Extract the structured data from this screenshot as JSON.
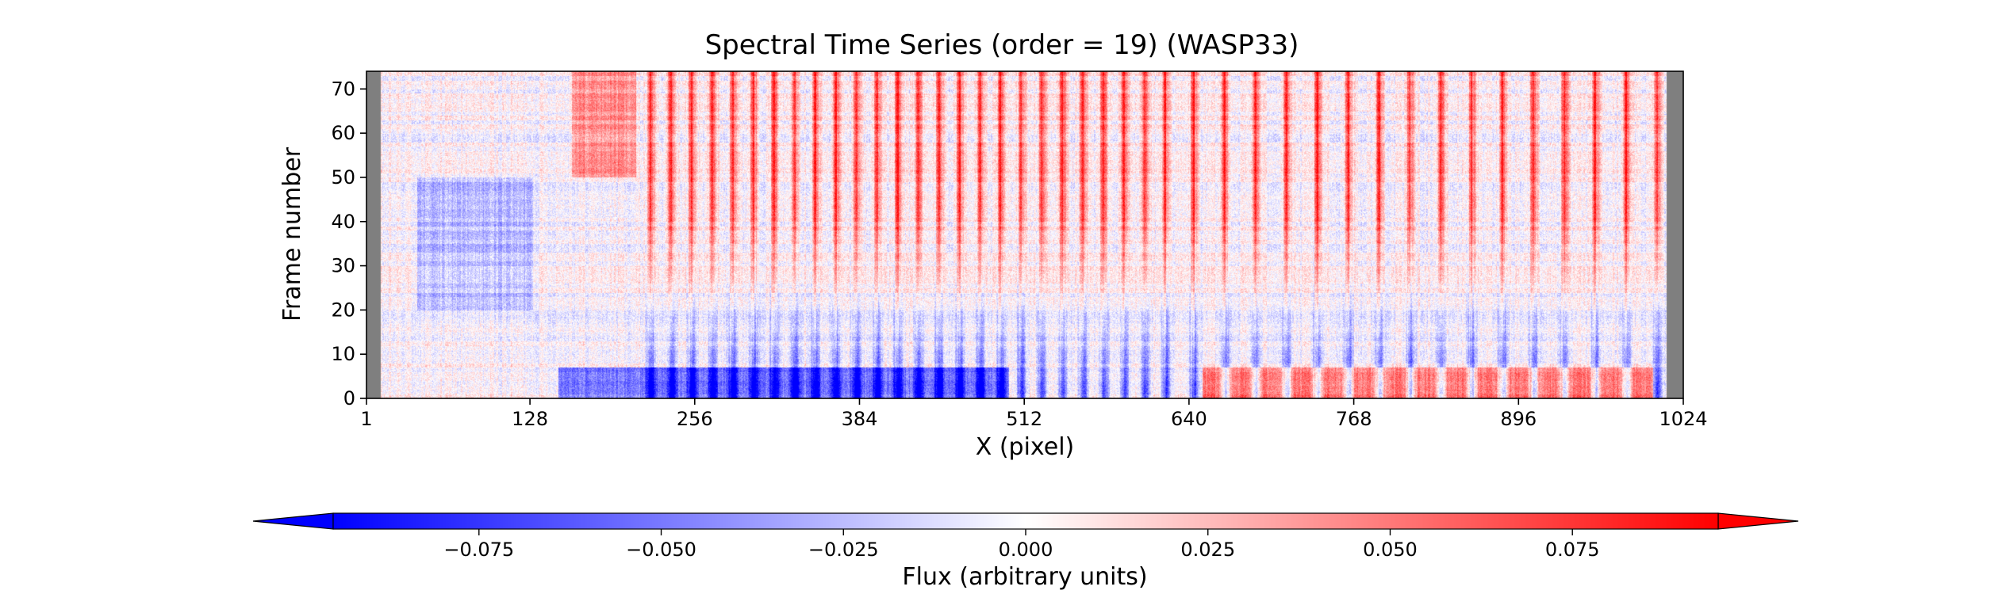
{
  "chart_data": {
    "type": "heatmap",
    "title": "Spectral Time Series (order = 19) (WASP33)",
    "xlabel": "X (pixel)",
    "ylabel": "Frame number",
    "xlim": [
      1,
      1024
    ],
    "ylim": [
      0,
      74
    ],
    "x_ticks": [
      1,
      128,
      256,
      384,
      512,
      640,
      768,
      896,
      1024
    ],
    "y_ticks": [
      0,
      10,
      20,
      30,
      40,
      50,
      60,
      70
    ],
    "masked_x_ranges": [
      [
        1,
        12
      ],
      [
        1011,
        1024
      ]
    ],
    "masked_color": "#7f7f7f",
    "n_frames": 74,
    "line_centers_x": [
      222,
      238,
      254,
      270,
      286,
      302,
      318,
      334,
      350,
      366,
      382,
      398,
      414,
      430,
      446,
      462,
      478,
      494,
      510,
      526,
      542,
      558,
      574,
      590,
      606,
      622,
      644,
      668,
      692,
      716,
      740,
      764,
      788,
      812,
      836,
      860,
      884,
      908,
      932,
      956,
      980,
      1004
    ],
    "colorbar": {
      "label": "Flux (arbitrary units)",
      "cmap": "bwr",
      "vmin": -0.095,
      "vmax": 0.095,
      "extend": "both",
      "ticks": [
        -0.075,
        -0.05,
        -0.025,
        0.0,
        0.025,
        0.05,
        0.075
      ],
      "tick_labels": [
        "−0.075",
        "−0.050",
        "−0.025",
        "0.000",
        "0.025",
        "0.050",
        "0.075"
      ],
      "color_low": "#0000ff",
      "color_mid": "#ffffff",
      "color_high": "#ff0000"
    }
  }
}
